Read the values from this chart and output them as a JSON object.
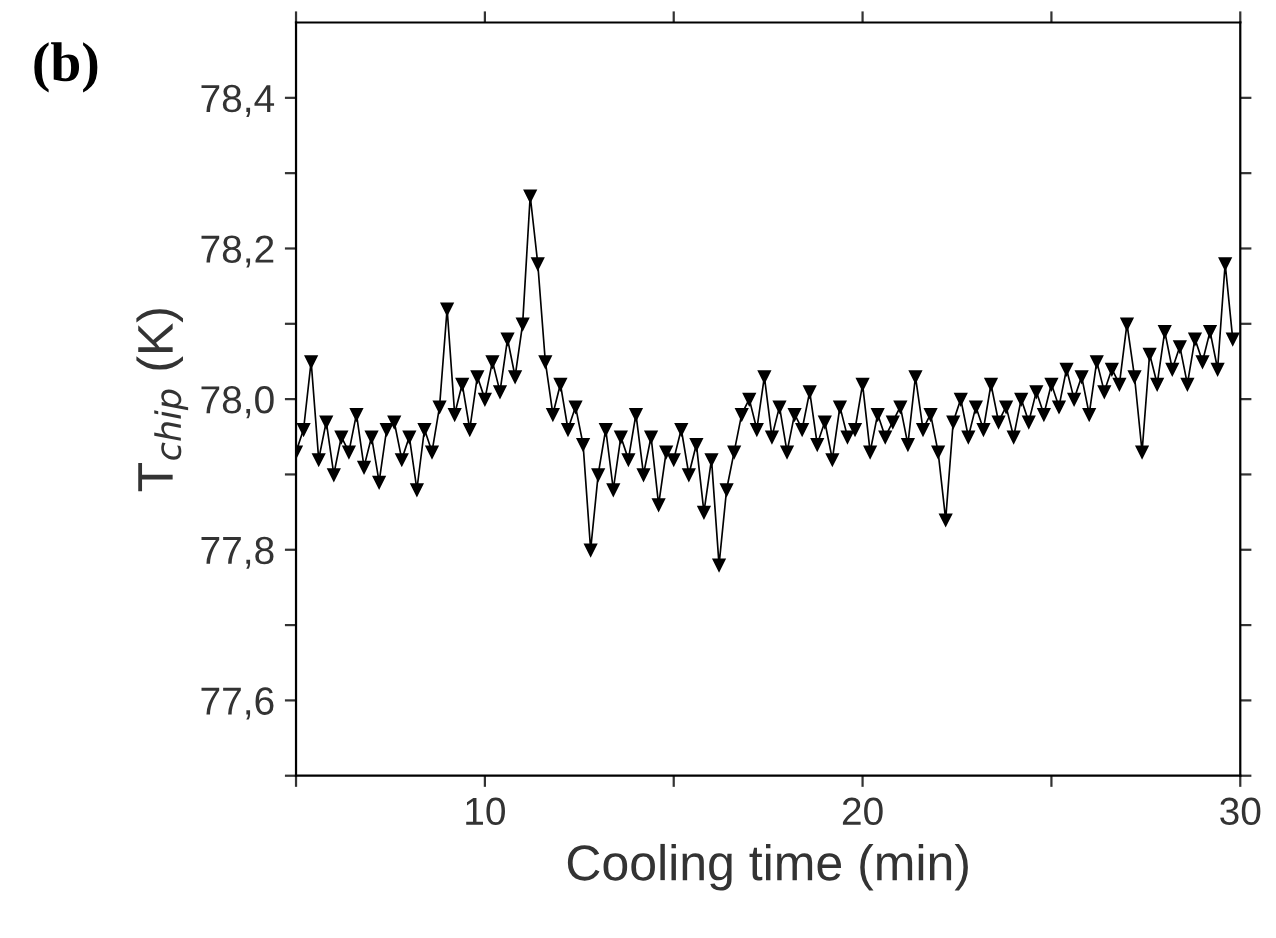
{
  "chart_data": {
    "type": "line",
    "xlabel": "Cooling time (min)",
    "ylabel": "T$_{chip}$ (K)",
    "annotations": [
      "(b)"
    ],
    "marker": "triangle",
    "line_style": "solid",
    "grid": false,
    "legend": false,
    "xlim": [
      5,
      30
    ],
    "ylim": [
      77.5,
      78.5
    ],
    "xticks": [
      {
        "value": 5,
        "label": null
      },
      10,
      {
        "value": 15,
        "label": null
      },
      20,
      {
        "value": 25,
        "label": null
      },
      30
    ],
    "yticks": [
      {
        "value": 77.5,
        "label": null
      },
      {
        "value": 77.6,
        "label": "77,6"
      },
      {
        "value": 77.7,
        "label": null
      },
      {
        "value": 77.8,
        "label": "77,8"
      },
      {
        "value": 77.9,
        "label": null
      },
      {
        "value": 78.0,
        "label": "78,0"
      },
      {
        "value": 78.1,
        "label": null
      },
      {
        "value": 78.2,
        "label": "78,2"
      },
      {
        "value": 78.3,
        "label": null
      },
      {
        "value": 78.4,
        "label": "78,4"
      }
    ],
    "series": [
      {
        "color": "#000000",
        "x": [
          5.0,
          5.2,
          5.4,
          5.6,
          5.8,
          6.0,
          6.2,
          6.4,
          6.6,
          6.8,
          7.0,
          7.2,
          7.4,
          7.6,
          7.8,
          8.0,
          8.2,
          8.4,
          8.6,
          8.8,
          9.0,
          9.2,
          9.4,
          9.6,
          9.8,
          10.0,
          10.2,
          10.4,
          10.6,
          10.8,
          11.0,
          11.2,
          11.4,
          11.6,
          11.8,
          12.0,
          12.2,
          12.4,
          12.6,
          12.8,
          13.0,
          13.2,
          13.4,
          13.6,
          13.8,
          14.0,
          14.2,
          14.4,
          14.6,
          14.8,
          15.0,
          15.2,
          15.4,
          15.6,
          15.8,
          16.0,
          16.2,
          16.4,
          16.6,
          16.8,
          17.0,
          17.2,
          17.4,
          17.6,
          17.8,
          18.0,
          18.2,
          18.4,
          18.6,
          18.8,
          19.0,
          19.2,
          19.4,
          19.6,
          19.8,
          20.0,
          20.2,
          20.4,
          20.6,
          20.8,
          21.0,
          21.2,
          21.4,
          21.6,
          21.8,
          22.0,
          22.2,
          22.4,
          22.6,
          22.8,
          23.0,
          23.2,
          23.4,
          23.6,
          23.8,
          24.0,
          24.2,
          24.4,
          24.6,
          24.8,
          25.0,
          25.2,
          25.4,
          25.6,
          25.8,
          26.0,
          26.2,
          26.4,
          26.6,
          26.8,
          27.0,
          27.2,
          27.4,
          27.6,
          27.8,
          28.0,
          28.2,
          28.4,
          28.6,
          28.8,
          29.0,
          29.2,
          29.4,
          29.6,
          29.8
        ],
        "values": [
          77.93,
          77.96,
          78.05,
          77.92,
          77.97,
          77.9,
          77.95,
          77.93,
          77.98,
          77.91,
          77.95,
          77.89,
          77.96,
          77.97,
          77.92,
          77.95,
          77.88,
          77.96,
          77.93,
          77.99,
          78.12,
          77.98,
          78.02,
          77.96,
          78.03,
          78.0,
          78.05,
          78.01,
          78.08,
          78.03,
          78.1,
          78.27,
          78.18,
          78.05,
          77.98,
          78.02,
          77.96,
          77.99,
          77.94,
          77.8,
          77.9,
          77.96,
          77.88,
          77.95,
          77.92,
          77.98,
          77.9,
          77.95,
          77.86,
          77.93,
          77.92,
          77.96,
          77.9,
          77.94,
          77.85,
          77.92,
          77.78,
          77.88,
          77.93,
          77.98,
          78.0,
          77.96,
          78.03,
          77.95,
          77.99,
          77.93,
          77.98,
          77.96,
          78.01,
          77.94,
          77.97,
          77.92,
          77.99,
          77.95,
          77.96,
          78.02,
          77.93,
          77.98,
          77.95,
          77.97,
          77.99,
          77.94,
          78.03,
          77.96,
          77.98,
          77.93,
          77.84,
          77.97,
          78.0,
          77.95,
          77.99,
          77.96,
          78.02,
          77.97,
          77.99,
          77.95,
          78.0,
          77.97,
          78.01,
          77.98,
          78.02,
          77.99,
          78.04,
          78.0,
          78.03,
          77.98,
          78.05,
          78.01,
          78.04,
          78.02,
          78.1,
          78.03,
          77.93,
          78.06,
          78.02,
          78.09,
          78.04,
          78.07,
          78.02,
          78.08,
          78.05,
          78.09,
          78.04,
          78.18,
          78.08
        ]
      }
    ]
  }
}
